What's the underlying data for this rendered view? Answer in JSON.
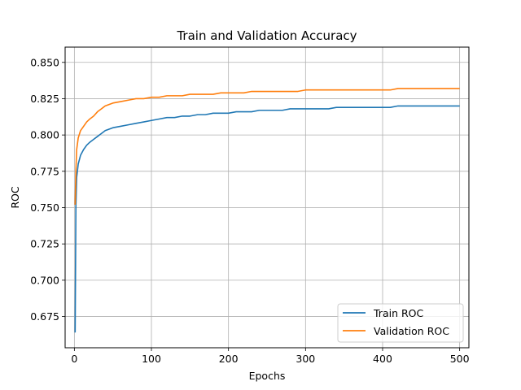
{
  "chart_data": {
    "type": "line",
    "title": "Train and Validation Accuracy",
    "xlabel": "Epochs",
    "ylabel": "ROC",
    "xlim": [
      -12,
      512
    ],
    "ylim": [
      0.6535,
      0.8605
    ],
    "xticks": [
      0,
      100,
      200,
      300,
      400,
      500
    ],
    "yticks": [
      0.675,
      0.7,
      0.725,
      0.75,
      0.775,
      0.8,
      0.825,
      0.85
    ],
    "grid": true,
    "legend_position": "lower-right",
    "series": [
      {
        "name": "Train ROC",
        "color": "#1f77b4",
        "x": [
          1,
          2,
          3,
          5,
          8,
          12,
          16,
          20,
          25,
          30,
          35,
          40,
          45,
          50,
          60,
          70,
          80,
          90,
          100,
          110,
          120,
          130,
          140,
          150,
          160,
          170,
          180,
          190,
          200,
          210,
          220,
          230,
          240,
          250,
          260,
          270,
          280,
          290,
          300,
          310,
          320,
          330,
          340,
          350,
          360,
          370,
          380,
          390,
          400,
          410,
          420,
          430,
          440,
          450,
          460,
          470,
          480,
          490,
          500
        ],
        "y": [
          0.664,
          0.752,
          0.771,
          0.78,
          0.786,
          0.79,
          0.793,
          0.795,
          0.797,
          0.799,
          0.801,
          0.803,
          0.804,
          0.805,
          0.806,
          0.807,
          0.808,
          0.809,
          0.81,
          0.811,
          0.812,
          0.812,
          0.813,
          0.813,
          0.814,
          0.814,
          0.815,
          0.815,
          0.815,
          0.816,
          0.816,
          0.816,
          0.817,
          0.817,
          0.817,
          0.817,
          0.818,
          0.818,
          0.818,
          0.818,
          0.818,
          0.818,
          0.819,
          0.819,
          0.819,
          0.819,
          0.819,
          0.819,
          0.819,
          0.819,
          0.82,
          0.82,
          0.82,
          0.82,
          0.82,
          0.82,
          0.82,
          0.82,
          0.82
        ]
      },
      {
        "name": "Validation ROC",
        "color": "#ff7f0e",
        "x": [
          1,
          2,
          3,
          5,
          8,
          12,
          16,
          20,
          25,
          30,
          35,
          40,
          45,
          50,
          60,
          70,
          80,
          90,
          100,
          110,
          120,
          130,
          140,
          150,
          160,
          170,
          180,
          190,
          200,
          210,
          220,
          230,
          240,
          250,
          260,
          270,
          280,
          290,
          300,
          310,
          320,
          330,
          340,
          350,
          360,
          370,
          380,
          390,
          400,
          410,
          420,
          430,
          440,
          450,
          460,
          470,
          480,
          490,
          500
        ],
        "y": [
          0.752,
          0.776,
          0.79,
          0.798,
          0.803,
          0.806,
          0.809,
          0.811,
          0.813,
          0.816,
          0.818,
          0.82,
          0.821,
          0.822,
          0.823,
          0.824,
          0.825,
          0.825,
          0.826,
          0.826,
          0.827,
          0.827,
          0.827,
          0.828,
          0.828,
          0.828,
          0.828,
          0.829,
          0.829,
          0.829,
          0.829,
          0.83,
          0.83,
          0.83,
          0.83,
          0.83,
          0.83,
          0.83,
          0.831,
          0.831,
          0.831,
          0.831,
          0.831,
          0.831,
          0.831,
          0.831,
          0.831,
          0.831,
          0.831,
          0.831,
          0.832,
          0.832,
          0.832,
          0.832,
          0.832,
          0.832,
          0.832,
          0.832,
          0.832
        ]
      }
    ]
  }
}
